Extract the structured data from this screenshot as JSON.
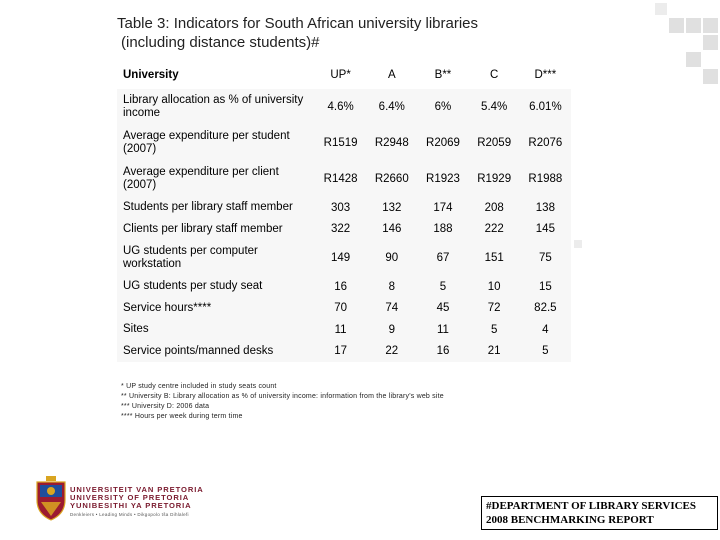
{
  "title": {
    "line1": "Table 3: Indicators for South African university libraries",
    "line2": "(including distance students)#"
  },
  "table": {
    "headers": [
      "University",
      "UP*",
      "A",
      "B**",
      "C",
      "D***"
    ],
    "rows": [
      {
        "label": "Library allocation as % of university income",
        "values": [
          "4.6%",
          "6.4%",
          "6%",
          "5.4%",
          "6.01%"
        ]
      },
      {
        "label": "Average expenditure per student (2007)",
        "values": [
          "R1519",
          "R2948",
          "R2069",
          "R2059",
          "R2076"
        ]
      },
      {
        "label": "Average expenditure per client (2007)",
        "values": [
          "R1428",
          "R2660",
          "R1923",
          "R1929",
          "R1988"
        ]
      },
      {
        "label": "Students per library staff member",
        "values": [
          "303",
          "132",
          "174",
          "208",
          "138"
        ]
      },
      {
        "label": "Clients per library staff member",
        "values": [
          "322",
          "146",
          "188",
          "222",
          "145"
        ]
      },
      {
        "label": "UG students per computer workstation",
        "values": [
          "149",
          "90",
          "67",
          "151",
          "75"
        ]
      },
      {
        "label": "UG students per study seat",
        "values": [
          "16",
          "8",
          "5",
          "10",
          "15"
        ]
      },
      {
        "label": "Service hours****",
        "values": [
          "70",
          "74",
          "45",
          "72",
          "82.5"
        ]
      },
      {
        "label": "Sites",
        "values": [
          "11",
          "9",
          "11",
          "5",
          "4"
        ]
      },
      {
        "label": "Service points/manned desks",
        "values": [
          "17",
          "22",
          "16",
          "21",
          "5"
        ]
      }
    ]
  },
  "footnotes": [
    "* UP study centre included in study seats count",
    "** University B: Library allocation as % of university income: information from the library's web site",
    "*** University D: 2006 data",
    "**** Hours per week during term time"
  ],
  "university": {
    "line1": "UNIVERSITEIT VAN PRETORIA",
    "line2": "UNIVERSITY OF PRETORIA",
    "line3": "YUNIBESITHI YA PRETORIA",
    "motto": "Denkleiers • Leading Minds • Dikgopolo tša Dihlalefi"
  },
  "department": {
    "line1": "#DEPARTMENT OF LIBRARY SERVICES",
    "line2": "2008 BENCHMARKING REPORT"
  },
  "colors": {
    "square": "#dcdcdc",
    "crest_red": "#9b1b30",
    "crest_blue": "#1f4e9c",
    "crest_gold": "#d9a521",
    "uni_text": "#7a1a2e"
  }
}
